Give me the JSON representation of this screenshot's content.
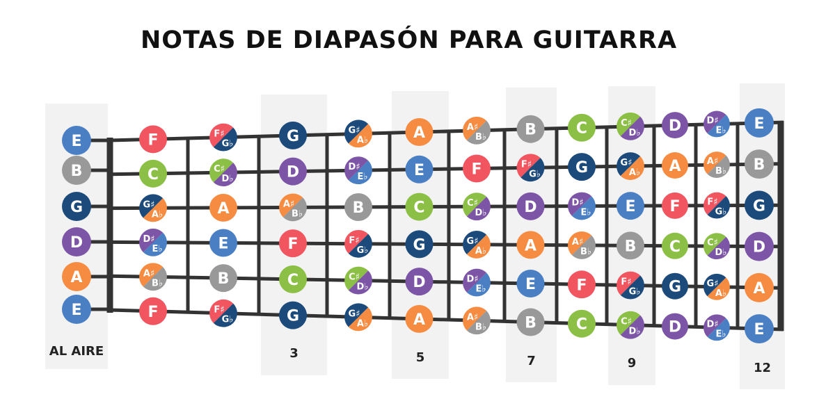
{
  "title": "NOTAS DE DIAPASÓN PARA GUITARRA",
  "open_label": "AL AIRE",
  "fret_markers": [
    {
      "fret": 3,
      "label": "3"
    },
    {
      "fret": 5,
      "label": "5"
    },
    {
      "fret": 7,
      "label": "7"
    },
    {
      "fret": 9,
      "label": "9"
    },
    {
      "fret": 12,
      "label": "12"
    }
  ],
  "colors": {
    "A": "#f58c42",
    "B": "#999999",
    "C": "#8cbf45",
    "D": "#7d55a6",
    "E": "#4a7fc4",
    "F": "#f05560",
    "G": "#1c4a7a",
    "fret_line": "#333333",
    "highlight": "#f2f2f2"
  },
  "open_strings": [
    "E",
    "B",
    "G",
    "D",
    "A",
    "E"
  ],
  "strings": [
    {
      "open": "E",
      "frets": [
        [
          "F"
        ],
        [
          "F♯",
          "G♭"
        ],
        [
          "G"
        ],
        [
          "G♯",
          "A♭"
        ],
        [
          "A"
        ],
        [
          "A♯",
          "B♭"
        ],
        [
          "B"
        ],
        [
          "C"
        ],
        [
          "C♯",
          "D♭"
        ],
        [
          "D"
        ],
        [
          "D♯",
          "E♭"
        ],
        [
          "E"
        ]
      ]
    },
    {
      "open": "B",
      "frets": [
        [
          "C"
        ],
        [
          "C♯",
          "D♭"
        ],
        [
          "D"
        ],
        [
          "D♯",
          "E♭"
        ],
        [
          "E"
        ],
        [
          "F"
        ],
        [
          "F♯",
          "G♭"
        ],
        [
          "G"
        ],
        [
          "G♯",
          "A♭"
        ],
        [
          "A"
        ],
        [
          "A♯",
          "B♭"
        ],
        [
          "B"
        ]
      ]
    },
    {
      "open": "G",
      "frets": [
        [
          "G♯",
          "A♭"
        ],
        [
          "A"
        ],
        [
          "A♯",
          "B♭"
        ],
        [
          "B"
        ],
        [
          "C"
        ],
        [
          "C♯",
          "D♭"
        ],
        [
          "D"
        ],
        [
          "D♯",
          "E♭"
        ],
        [
          "E"
        ],
        [
          "F"
        ],
        [
          "F♯",
          "G♭"
        ],
        [
          "G"
        ]
      ]
    },
    {
      "open": "D",
      "frets": [
        [
          "D♯",
          "E♭"
        ],
        [
          "E"
        ],
        [
          "F"
        ],
        [
          "F♯",
          "G♭"
        ],
        [
          "G"
        ],
        [
          "G♯",
          "A♭"
        ],
        [
          "A"
        ],
        [
          "A♯",
          "B♭"
        ],
        [
          "B"
        ],
        [
          "C"
        ],
        [
          "C♯",
          "D♭"
        ],
        [
          "D"
        ]
      ]
    },
    {
      "open": "A",
      "frets": [
        [
          "A♯",
          "B♭"
        ],
        [
          "B"
        ],
        [
          "C"
        ],
        [
          "C♯",
          "D♭"
        ],
        [
          "D"
        ],
        [
          "D♯",
          "E♭"
        ],
        [
          "E"
        ],
        [
          "F"
        ],
        [
          "F♯",
          "G♭"
        ],
        [
          "G"
        ],
        [
          "G♯",
          "A♭"
        ],
        [
          "A"
        ]
      ]
    },
    {
      "open": "E",
      "frets": [
        [
          "F"
        ],
        [
          "F♯",
          "G♭"
        ],
        [
          "G"
        ],
        [
          "G♯",
          "A♭"
        ],
        [
          "A"
        ],
        [
          "A♯",
          "B♭"
        ],
        [
          "B"
        ],
        [
          "C"
        ],
        [
          "C♯",
          "D♭"
        ],
        [
          "D"
        ],
        [
          "D♯",
          "E♭"
        ],
        [
          "E"
        ]
      ]
    }
  ]
}
